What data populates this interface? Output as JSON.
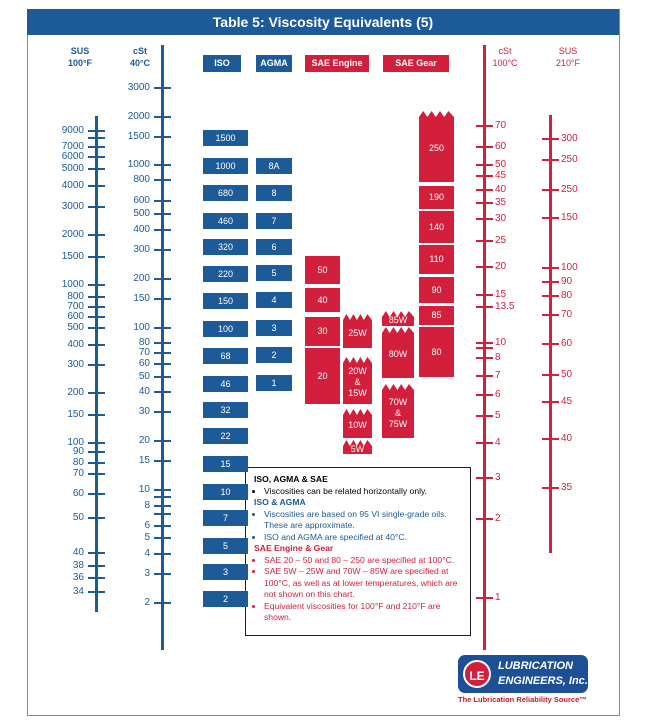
{
  "title": "Table 5: Viscosity Equivalents (5)",
  "colors": {
    "blue": "#1c5a98",
    "red": "#d21f3c"
  },
  "chart_data": {
    "type": "table",
    "title": "Table 5: Viscosity Equivalents (5)",
    "axes": [
      {
        "id": "sus100",
        "label1": "SUS",
        "label2": "100°F",
        "color": "blue",
        "ticks": [
          "9000",
          "",
          "7000",
          "6000",
          "5000",
          "4000",
          "3000",
          "2000",
          "1500",
          "1000",
          "800",
          "700",
          "600",
          "500",
          "400",
          "300",
          "200",
          "150",
          "100",
          "90",
          "80",
          "70",
          "60",
          "50",
          "40",
          "38",
          "36",
          "34"
        ]
      },
      {
        "id": "cst40",
        "label1": "cSt",
        "label2": "40°C",
        "color": "blue",
        "ticks": [
          "3000",
          "2000",
          "1500",
          "1000",
          "800",
          "600",
          "500",
          "400",
          "300",
          "200",
          "150",
          "100",
          "80",
          "70",
          "60",
          "50",
          "40",
          "30",
          "20",
          "15",
          "10",
          "",
          "8",
          "",
          "6",
          "5",
          "4",
          "3",
          "2"
        ]
      },
      {
        "id": "cst100",
        "label1": "cSt",
        "label2": "100°C",
        "color": "red",
        "ticks": [
          "70",
          "60",
          "50",
          "45",
          "40",
          "35",
          "30",
          "25",
          "20",
          "15",
          "13.5",
          "10",
          "",
          "8",
          "7",
          "6",
          "5",
          "4",
          "3",
          "2",
          "1"
        ]
      },
      {
        "id": "sus210",
        "label1": "SUS",
        "label2": "210°F",
        "color": "red",
        "ticks": [
          "300",
          "250",
          "250",
          "150",
          "100",
          "90",
          "80",
          "70",
          "60",
          "50",
          "45",
          "40",
          "35"
        ]
      }
    ],
    "columns": [
      {
        "header": "ISO",
        "color": "blue",
        "grades": [
          "1500",
          "1000",
          "680",
          "460",
          "320",
          "220",
          "150",
          "100",
          "68",
          "46",
          "32",
          "22",
          "15",
          "10",
          "7",
          "5",
          "3",
          "2"
        ]
      },
      {
        "header": "AGMA",
        "color": "blue",
        "grades": [
          "8A",
          "8",
          "7",
          "6",
          "5",
          "4",
          "3",
          "2",
          "1"
        ]
      },
      {
        "header": "SAE Engine",
        "color": "red",
        "grades": [
          "50",
          "40",
          "30",
          "20"
        ],
        "grades_w": [
          "25W",
          "20W & 15W",
          "10W",
          "5W"
        ]
      },
      {
        "header": "SAE Gear",
        "color": "red",
        "grades_w": [
          "85W",
          "80W",
          "70W & 75W"
        ],
        "grades": [
          "250",
          "190",
          "140",
          "110",
          "90",
          "85",
          "80"
        ]
      }
    ]
  },
  "notes": {
    "h1": "ISO, AGMA & SAE",
    "n1": "Viscosities can be related horizontally only.",
    "h2": "ISO & AGMA",
    "n2": "Viscosities are based on 95 VI single-grade oils. These are approximate.",
    "n3": "ISO and AGMA are specified at 40°C.",
    "h3": "SAE Engine & Gear",
    "n4": "SAE 20 – 50 and 80 – 250 are specified at 100°C.",
    "n5": "SAE 5W – 25W and 70W – 85W are specified at 100°C, as well as at lower temperatures, which are not shown on this chart.",
    "n6": "Equivalent viscosities for 100°F and 210°F are shown."
  },
  "logo": {
    "line1": "LUBRICATION",
    "line2": "ENGINEERS, Inc.",
    "mark": "LE",
    "tagline": "The Lubrication Reliability Source™"
  }
}
